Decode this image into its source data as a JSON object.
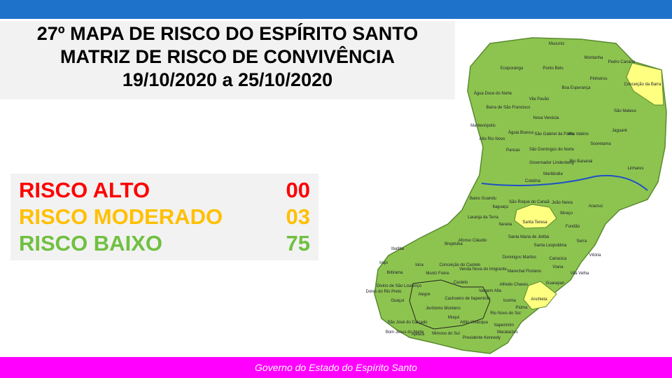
{
  "header": {
    "title_lines": [
      "27º MAPA DE RISCO DO ESPÍRITO SANTO",
      "MATRIZ DE RISCO DE CONVIVÊNCIA",
      "19/10/2020 a 25/10/2020"
    ]
  },
  "legend": {
    "rows": [
      {
        "label": "RISCO ALTO",
        "count": "00",
        "color": "#ff0000"
      },
      {
        "label": "RISCO MODERADO",
        "count": "03",
        "color": "#ffc000"
      },
      {
        "label": "RISCO BAIXO",
        "count": "75",
        "color": "#70c040"
      }
    ]
  },
  "map": {
    "labels": [
      "Mucurici",
      "Montanha",
      "Pedro Canário",
      "Ecoporanga",
      "Ponto Belo",
      "Pinheiros",
      "Conceição da Barra",
      "Água Doce do Norte",
      "Boa Esperança",
      "Vila Pavão",
      "Barra de São Francisco",
      "São Mateus",
      "Nova Venécia",
      "Mantenópolis",
      "Águia Branca",
      "São Gabriel da Palha",
      "Vila Valério",
      "Jaguaré",
      "Alto Rio Novo",
      "São Domingos do Norte",
      "Sooretama",
      "Pancas",
      "Governador Lindenberg",
      "Rio Bananal",
      "Linhares",
      "Marilândia",
      "Colatina",
      "Baixo Guandu",
      "São Roque do Canaã",
      "João Neiva",
      "Aracruz",
      "Itaguaçu",
      "Ibiraçu",
      "Laranja da Terra",
      "Santa Teresa",
      "Itarana",
      "Fundão",
      "Afonso Cláudio",
      "Santa Maria de Jetibá",
      "Serra",
      "Brejetuba",
      "Santa Leopoldina",
      "Vitória",
      "Ibatiba",
      "Domingos Martins",
      "Cariacica",
      "Irupi",
      "Iúna",
      "Conceição do Castelo",
      "Venda Nova do Imigrante",
      "Viana",
      "Ibitirama",
      "Muniz Freire",
      "Marechal Floriano",
      "Vila Velha",
      "Castelo",
      "Alfredo Chaves",
      "Guarapari",
      "Divino de São Lourenço",
      "Dores do Rio Preto",
      "Vargem Alta",
      "Alegre",
      "Jerônimo Monteiro",
      "Cachoeiro de Itapemirim",
      "Anchieta",
      "Iconha",
      "Piúma",
      "Guaçuí",
      "Muqui",
      "Atílio Vivácqua",
      "Rio Novo do Sul",
      "São José do Calçado",
      "Bom Jesus do Norte",
      "Apiacá",
      "Mimoso do Sul",
      "Itapemirim",
      "Marataízes",
      "Presidente Kennedy"
    ]
  },
  "footer": {
    "text": "Governo do Estado do Espírito Santo"
  }
}
